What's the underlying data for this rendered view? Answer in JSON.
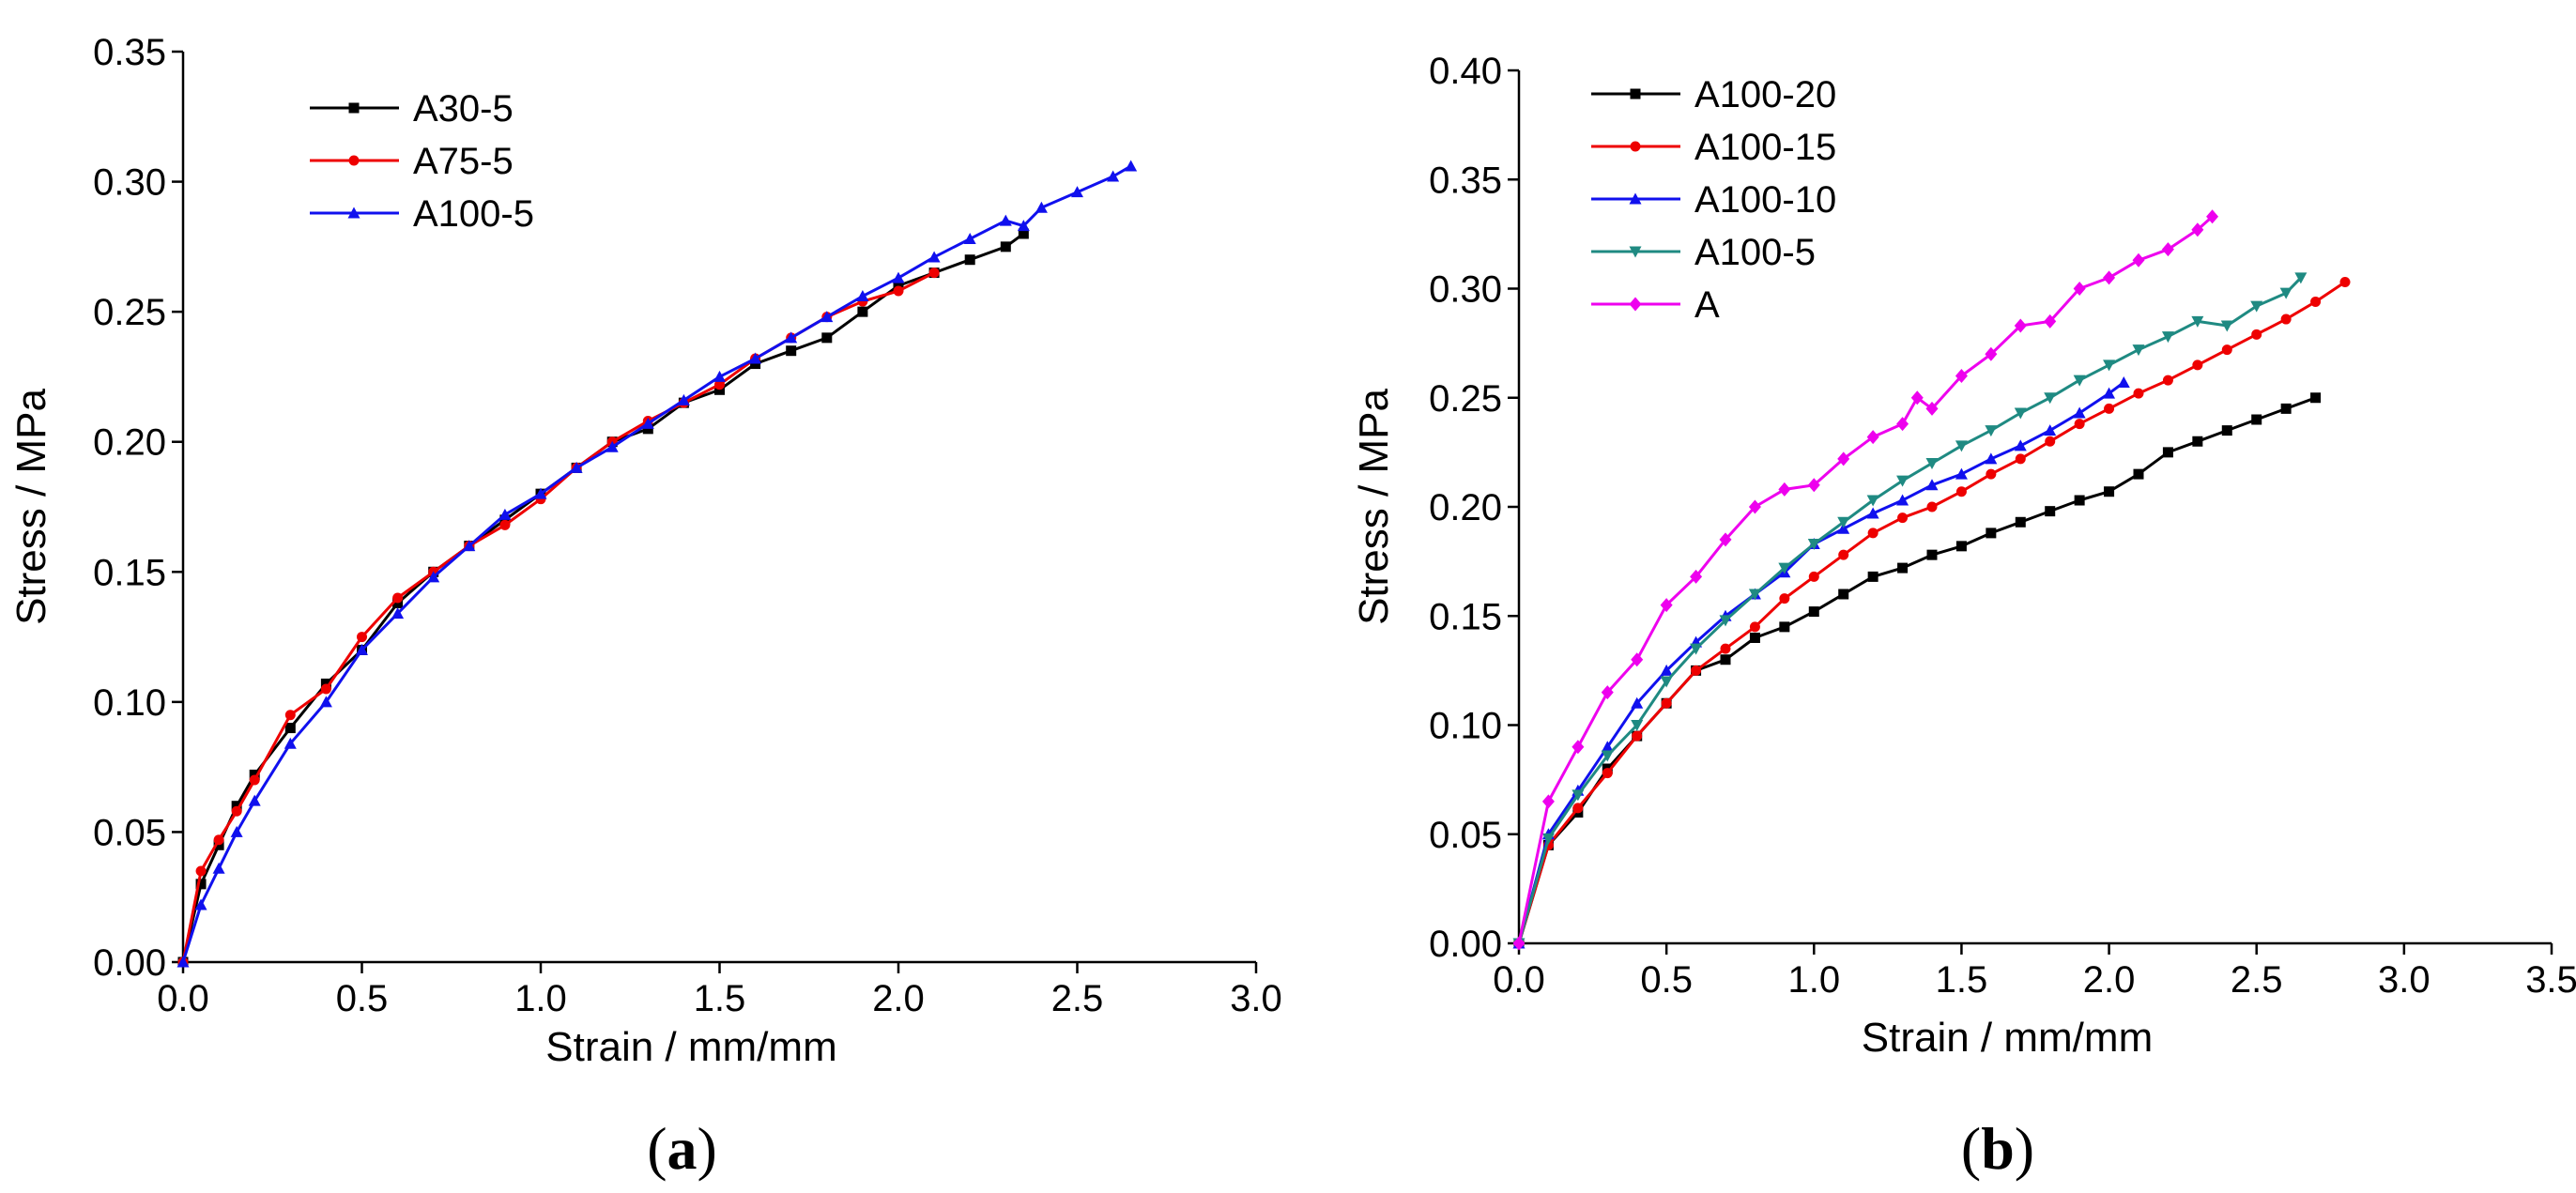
{
  "chart_data": [
    {
      "panel": "a",
      "caption_open": "(",
      "caption_letter": "a",
      "caption_close": ")",
      "type": "line",
      "xlabel": "Strain / mm/mm",
      "ylabel": "Stress / MPa",
      "xlim": [
        0.0,
        3.0
      ],
      "ylim": [
        0.0,
        0.35
      ],
      "xticks": [
        "0.0",
        "0.5",
        "1.0",
        "1.5",
        "2.0",
        "2.5",
        "3.0"
      ],
      "yticks": [
        "0.00",
        "0.05",
        "0.10",
        "0.15",
        "0.20",
        "0.25",
        "0.30",
        "0.35"
      ],
      "legend_position": "top-left",
      "series": [
        {
          "name": "A30-5",
          "color": "#000000",
          "marker": "square",
          "x": [
            0,
            0.05,
            0.1,
            0.15,
            0.2,
            0.3,
            0.4,
            0.5,
            0.6,
            0.7,
            0.8,
            0.9,
            1.0,
            1.1,
            1.2,
            1.3,
            1.4,
            1.5,
            1.6,
            1.7,
            1.8,
            1.9,
            2.0,
            2.1,
            2.2,
            2.3,
            2.35
          ],
          "y": [
            0,
            0.03,
            0.045,
            0.06,
            0.072,
            0.09,
            0.107,
            0.12,
            0.138,
            0.15,
            0.16,
            0.17,
            0.18,
            0.19,
            0.2,
            0.205,
            0.215,
            0.22,
            0.23,
            0.235,
            0.24,
            0.25,
            0.26,
            0.265,
            0.27,
            0.275,
            0.28
          ]
        },
        {
          "name": "A75-5",
          "color": "#ee0000",
          "marker": "circle",
          "x": [
            0,
            0.05,
            0.1,
            0.15,
            0.2,
            0.3,
            0.4,
            0.5,
            0.6,
            0.7,
            0.8,
            0.9,
            1.0,
            1.1,
            1.2,
            1.3,
            1.4,
            1.5,
            1.6,
            1.7,
            1.8,
            1.9,
            2.0,
            2.1
          ],
          "y": [
            0,
            0.035,
            0.047,
            0.058,
            0.07,
            0.095,
            0.105,
            0.125,
            0.14,
            0.15,
            0.16,
            0.168,
            0.178,
            0.19,
            0.2,
            0.208,
            0.215,
            0.222,
            0.232,
            0.24,
            0.248,
            0.254,
            0.258,
            0.265
          ]
        },
        {
          "name": "A100-5",
          "color": "#1010ee",
          "marker": "triangle",
          "x": [
            0,
            0.05,
            0.1,
            0.15,
            0.2,
            0.3,
            0.4,
            0.5,
            0.6,
            0.7,
            0.8,
            0.9,
            1.0,
            1.1,
            1.2,
            1.3,
            1.4,
            1.5,
            1.6,
            1.7,
            1.8,
            1.9,
            2.0,
            2.1,
            2.2,
            2.3,
            2.35,
            2.4,
            2.5,
            2.6,
            2.65
          ],
          "y": [
            0,
            0.022,
            0.036,
            0.05,
            0.062,
            0.084,
            0.1,
            0.12,
            0.134,
            0.148,
            0.16,
            0.172,
            0.18,
            0.19,
            0.198,
            0.207,
            0.216,
            0.225,
            0.232,
            0.24,
            0.248,
            0.256,
            0.263,
            0.271,
            0.278,
            0.285,
            0.283,
            0.29,
            0.296,
            0.302,
            0.306
          ]
        }
      ]
    },
    {
      "panel": "b",
      "caption_open": "(",
      "caption_letter": "b",
      "caption_close": ")",
      "type": "line",
      "xlabel": "Strain / mm/mm",
      "ylabel": "Stress / MPa",
      "xlim": [
        0.0,
        3.5
      ],
      "ylim": [
        0.0,
        0.4
      ],
      "xticks": [
        "0.0",
        "0.5",
        "1.0",
        "1.5",
        "2.0",
        "2.5",
        "3.0",
        "3.5"
      ],
      "yticks": [
        "0.00",
        "0.05",
        "0.10",
        "0.15",
        "0.20",
        "0.25",
        "0.30",
        "0.35",
        "0.40"
      ],
      "legend_position": "top-left",
      "series": [
        {
          "name": "A100-20",
          "color": "#000000",
          "marker": "square",
          "x": [
            0,
            0.1,
            0.2,
            0.3,
            0.4,
            0.5,
            0.6,
            0.7,
            0.8,
            0.9,
            1.0,
            1.1,
            1.2,
            1.3,
            1.4,
            1.5,
            1.6,
            1.7,
            1.8,
            1.9,
            2.0,
            2.1,
            2.2,
            2.3,
            2.4,
            2.5,
            2.6,
            2.7
          ],
          "y": [
            0,
            0.045,
            0.06,
            0.08,
            0.095,
            0.11,
            0.125,
            0.13,
            0.14,
            0.145,
            0.152,
            0.16,
            0.168,
            0.172,
            0.178,
            0.182,
            0.188,
            0.193,
            0.198,
            0.203,
            0.207,
            0.215,
            0.225,
            0.23,
            0.235,
            0.24,
            0.245,
            0.25
          ]
        },
        {
          "name": "A100-15",
          "color": "#ee0000",
          "marker": "circle",
          "x": [
            0,
            0.1,
            0.2,
            0.3,
            0.4,
            0.5,
            0.6,
            0.7,
            0.8,
            0.9,
            1.0,
            1.1,
            1.2,
            1.3,
            1.4,
            1.5,
            1.6,
            1.7,
            1.8,
            1.9,
            2.0,
            2.1,
            2.2,
            2.3,
            2.4,
            2.5,
            2.6,
            2.7,
            2.8
          ],
          "y": [
            0,
            0.045,
            0.062,
            0.078,
            0.095,
            0.11,
            0.125,
            0.135,
            0.145,
            0.158,
            0.168,
            0.178,
            0.188,
            0.195,
            0.2,
            0.207,
            0.215,
            0.222,
            0.23,
            0.238,
            0.245,
            0.252,
            0.258,
            0.265,
            0.272,
            0.279,
            0.286,
            0.294,
            0.303
          ]
        },
        {
          "name": "A100-10",
          "color": "#1010ee",
          "marker": "triangle",
          "x": [
            0,
            0.1,
            0.2,
            0.3,
            0.4,
            0.5,
            0.6,
            0.7,
            0.8,
            0.9,
            1.0,
            1.1,
            1.2,
            1.3,
            1.4,
            1.5,
            1.6,
            1.7,
            1.8,
            1.9,
            2.0,
            2.05
          ],
          "y": [
            0,
            0.05,
            0.07,
            0.09,
            0.11,
            0.125,
            0.138,
            0.15,
            0.16,
            0.17,
            0.183,
            0.19,
            0.197,
            0.203,
            0.21,
            0.215,
            0.222,
            0.228,
            0.235,
            0.243,
            0.252,
            0.257
          ]
        },
        {
          "name": "A100-5",
          "color": "#1f8a82",
          "marker": "triangle-down",
          "x": [
            0,
            0.1,
            0.2,
            0.3,
            0.4,
            0.5,
            0.6,
            0.7,
            0.8,
            0.9,
            1.0,
            1.1,
            1.2,
            1.3,
            1.4,
            1.5,
            1.6,
            1.7,
            1.8,
            1.9,
            2.0,
            2.1,
            2.2,
            2.3,
            2.4,
            2.5,
            2.6,
            2.65
          ],
          "y": [
            0,
            0.048,
            0.068,
            0.086,
            0.1,
            0.12,
            0.135,
            0.148,
            0.16,
            0.172,
            0.183,
            0.193,
            0.203,
            0.212,
            0.22,
            0.228,
            0.235,
            0.243,
            0.25,
            0.258,
            0.265,
            0.272,
            0.278,
            0.285,
            0.283,
            0.292,
            0.298,
            0.305
          ]
        },
        {
          "name": "A",
          "color": "#ee00ee",
          "marker": "diamond",
          "x": [
            0,
            0.1,
            0.2,
            0.3,
            0.4,
            0.5,
            0.6,
            0.7,
            0.8,
            0.9,
            1.0,
            1.1,
            1.2,
            1.3,
            1.35,
            1.4,
            1.5,
            1.6,
            1.7,
            1.8,
            1.9,
            2.0,
            2.1,
            2.2,
            2.3,
            2.35
          ],
          "y": [
            0,
            0.065,
            0.09,
            0.115,
            0.13,
            0.155,
            0.168,
            0.185,
            0.2,
            0.208,
            0.21,
            0.222,
            0.232,
            0.238,
            0.25,
            0.245,
            0.26,
            0.27,
            0.283,
            0.285,
            0.3,
            0.305,
            0.313,
            0.318,
            0.327,
            0.333
          ]
        }
      ]
    }
  ]
}
